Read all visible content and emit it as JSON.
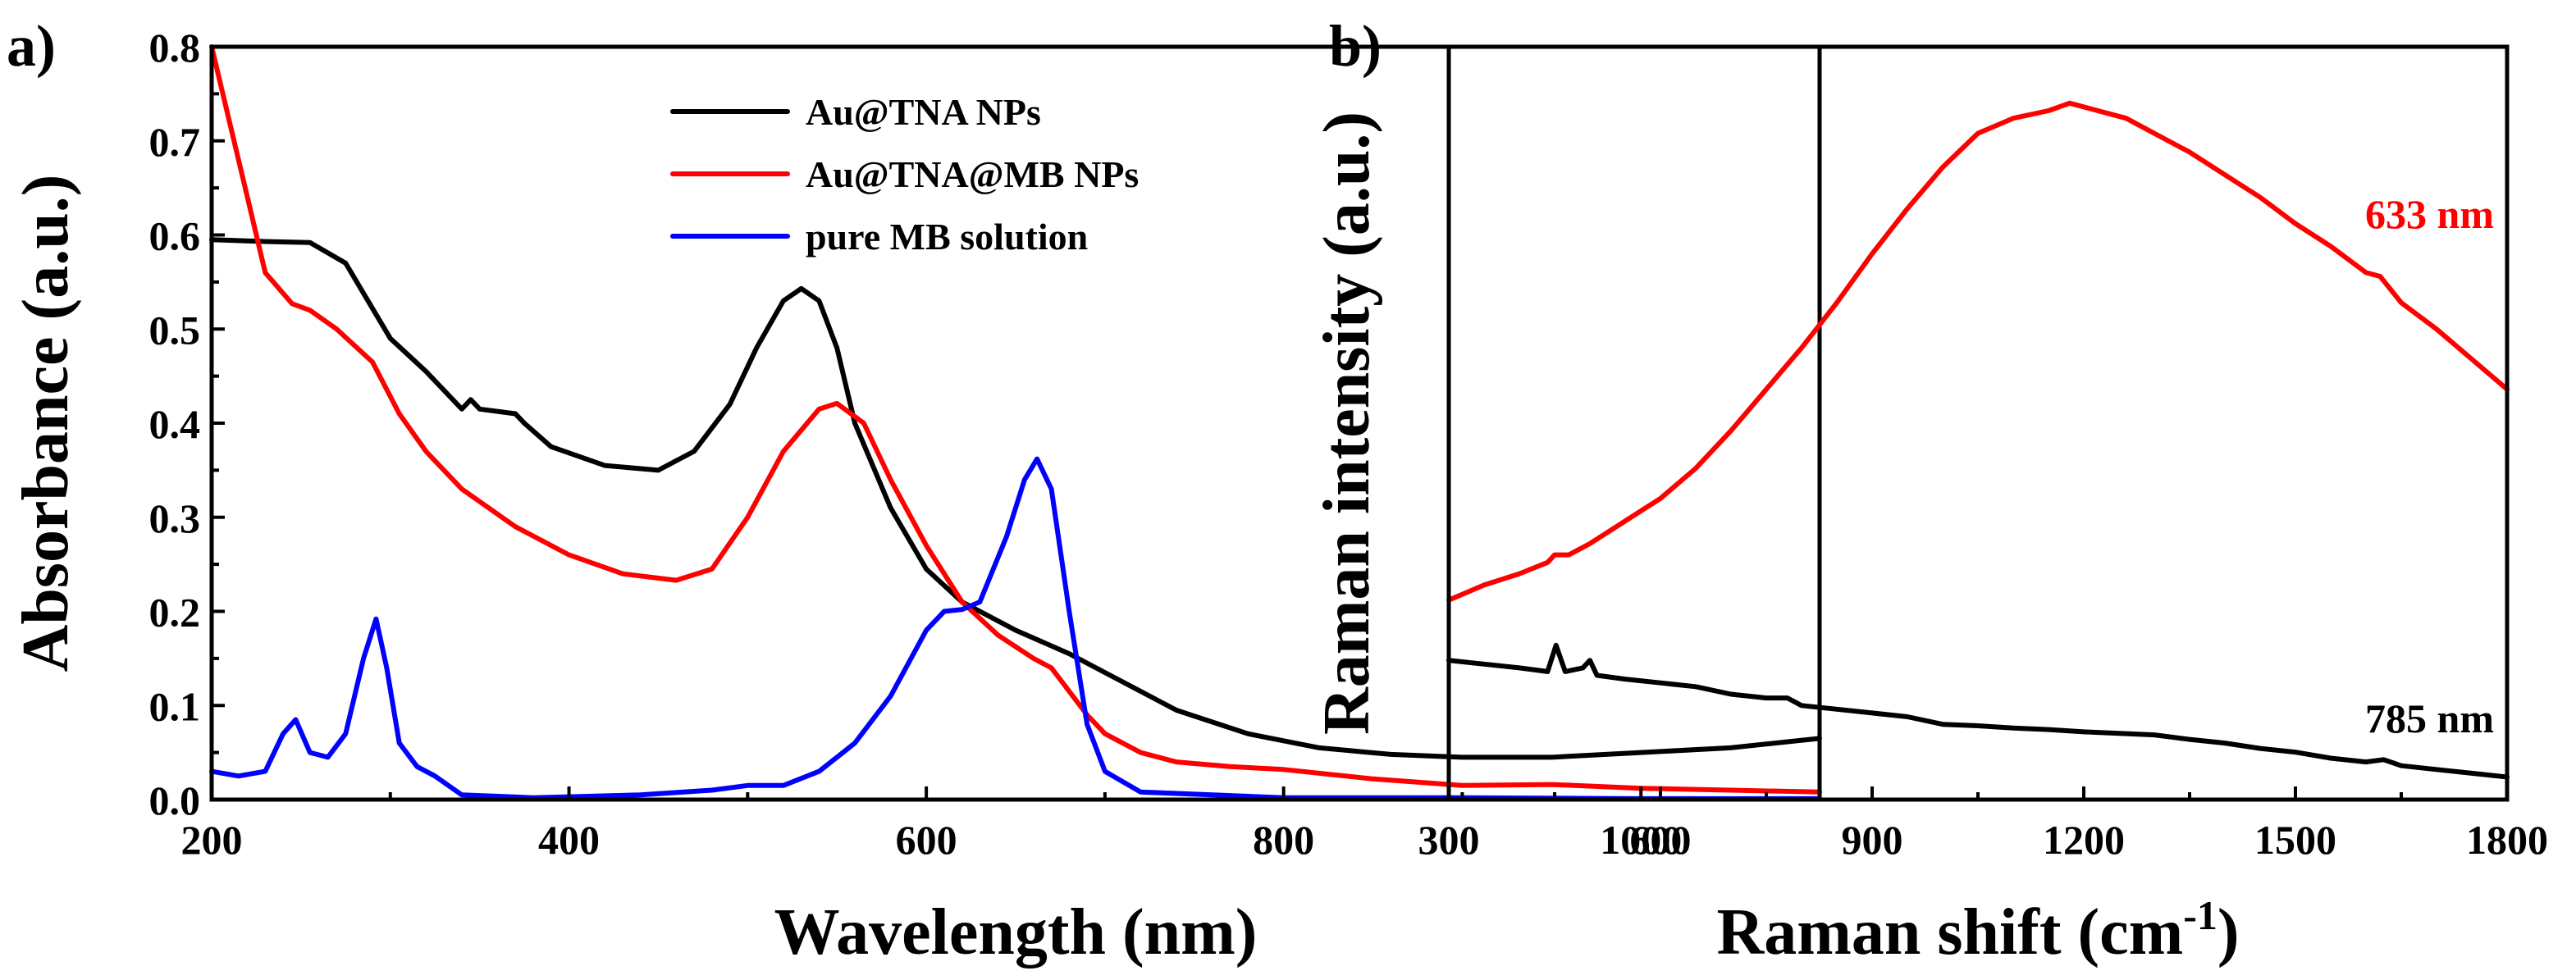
{
  "chart_data": [
    {
      "panel": "a)",
      "type": "line",
      "xlabel": "Wavelength (nm)",
      "ylabel": "Absorbance (a.u.)",
      "xlim": [
        200,
        1100
      ],
      "ylim": [
        0,
        0.8
      ],
      "xticks": [
        "200",
        "400",
        "600",
        "800",
        "1000"
      ],
      "xtick_values": [
        200,
        400,
        600,
        800,
        1000
      ],
      "yticks": [
        "0.0",
        "0.1",
        "0.2",
        "0.3",
        "0.4",
        "0.5",
        "0.6",
        "0.7",
        "0.8"
      ],
      "ytick_values": [
        0,
        0.1,
        0.2,
        0.3,
        0.4,
        0.5,
        0.6,
        0.7,
        0.8
      ],
      "legend_position": "top-right",
      "series": [
        {
          "name": "Au@TNA NPs",
          "color": "#000000",
          "x": [
            200,
            230,
            255,
            275,
            300,
            320,
            340,
            345,
            350,
            370,
            375,
            390,
            420,
            450,
            470,
            490,
            505,
            520,
            530,
            540,
            550,
            560,
            580,
            600,
            620,
            650,
            680,
            700,
            740,
            780,
            820,
            860,
            900,
            950,
            1000,
            1050,
            1100
          ],
          "y": [
            0.595,
            0.593,
            0.592,
            0.57,
            0.49,
            0.455,
            0.415,
            0.425,
            0.415,
            0.41,
            0.4,
            0.375,
            0.355,
            0.35,
            0.37,
            0.42,
            0.48,
            0.53,
            0.543,
            0.53,
            0.48,
            0.4,
            0.31,
            0.245,
            0.21,
            0.18,
            0.155,
            0.135,
            0.095,
            0.07,
            0.055,
            0.048,
            0.045,
            0.045,
            0.05,
            0.055,
            0.065
          ]
        },
        {
          "name": "Au@TNA@MB NPs",
          "color": "#ff0000",
          "x": [
            200,
            210,
            220,
            230,
            245,
            255,
            270,
            290,
            305,
            320,
            340,
            370,
            400,
            430,
            460,
            480,
            500,
            520,
            540,
            550,
            565,
            580,
            600,
            620,
            640,
            660,
            670,
            690,
            700,
            720,
            740,
            770,
            800,
            850,
            900,
            950,
            1000,
            1050,
            1100
          ],
          "y": [
            0.8,
            0.72,
            0.64,
            0.56,
            0.527,
            0.52,
            0.5,
            0.465,
            0.41,
            0.37,
            0.33,
            0.29,
            0.26,
            0.24,
            0.233,
            0.245,
            0.3,
            0.37,
            0.415,
            0.421,
            0.4,
            0.34,
            0.27,
            0.21,
            0.175,
            0.15,
            0.14,
            0.09,
            0.07,
            0.05,
            0.04,
            0.035,
            0.032,
            0.022,
            0.015,
            0.016,
            0.012,
            0.01,
            0.008
          ]
        },
        {
          "name": "pure MB solution",
          "color": "#0000ff",
          "x": [
            200,
            215,
            230,
            240,
            247,
            255,
            265,
            275,
            285,
            292,
            298,
            305,
            315,
            325,
            340,
            380,
            440,
            480,
            500,
            520,
            540,
            560,
            580,
            600,
            610,
            620,
            630,
            645,
            655,
            662,
            670,
            680,
            690,
            700,
            720,
            800,
            900,
            1000,
            1100
          ],
          "y": [
            0.03,
            0.025,
            0.03,
            0.07,
            0.085,
            0.05,
            0.045,
            0.07,
            0.15,
            0.192,
            0.14,
            0.06,
            0.035,
            0.025,
            0.005,
            0.002,
            0.005,
            0.01,
            0.015,
            0.015,
            0.03,
            0.06,
            0.11,
            0.18,
            0.2,
            0.202,
            0.21,
            0.28,
            0.34,
            0.362,
            0.33,
            0.2,
            0.08,
            0.03,
            0.008,
            0.002,
            0.002,
            0.001,
            0.001
          ]
        }
      ]
    },
    {
      "panel": "b)",
      "type": "line",
      "xlabel": "Raman shift (cm",
      "xlabel_sup": "-1",
      "xlabel_close": ")",
      "ylabel": "Raman intensity (a.u.)",
      "xlim": [
        300,
        1800
      ],
      "ylim": [
        0,
        100
      ],
      "xticks": [
        "300",
        "600",
        "900",
        "1200",
        "1500",
        "1800"
      ],
      "xtick_values": [
        300,
        600,
        900,
        1200,
        1500,
        1800
      ],
      "yticks": [],
      "series": [
        {
          "name": "633 nm",
          "color": "#ff0000",
          "x": [
            300,
            350,
            400,
            440,
            450,
            470,
            500,
            550,
            600,
            650,
            700,
            750,
            800,
            850,
            900,
            950,
            1000,
            1050,
            1100,
            1150,
            1180,
            1220,
            1260,
            1300,
            1350,
            1400,
            1450,
            1500,
            1550,
            1600,
            1620,
            1650,
            1700,
            1750,
            1800
          ],
          "y": [
            26.5,
            28.5,
            30,
            31.5,
            32.5,
            32.5,
            34,
            37,
            40,
            44,
            49,
            54.5,
            60,
            66,
            72.5,
            78.5,
            84,
            88.5,
            90.5,
            91.5,
            92.5,
            91.5,
            90.5,
            88.5,
            86,
            83,
            80,
            76.5,
            73.5,
            70,
            69.5,
            66,
            62.5,
            58.5,
            54.5
          ]
        },
        {
          "name": "785 nm",
          "color": "#000000",
          "x": [
            300,
            350,
            400,
            440,
            452,
            465,
            490,
            500,
            510,
            550,
            600,
            650,
            700,
            750,
            780,
            800,
            850,
            900,
            950,
            1000,
            1050,
            1100,
            1150,
            1200,
            1250,
            1300,
            1350,
            1400,
            1450,
            1500,
            1550,
            1600,
            1625,
            1650,
            1700,
            1750,
            1800
          ],
          "y": [
            18.5,
            18,
            17.5,
            17,
            20.5,
            17,
            17.5,
            18.5,
            16.5,
            16,
            15.5,
            15,
            14,
            13.5,
            13.5,
            12.5,
            12,
            11.5,
            11,
            10,
            9.8,
            9.5,
            9.3,
            9,
            8.8,
            8.6,
            8,
            7.5,
            6.8,
            6.3,
            5.5,
            5,
            5.3,
            4.5,
            4,
            3.5,
            3
          ]
        }
      ]
    }
  ]
}
